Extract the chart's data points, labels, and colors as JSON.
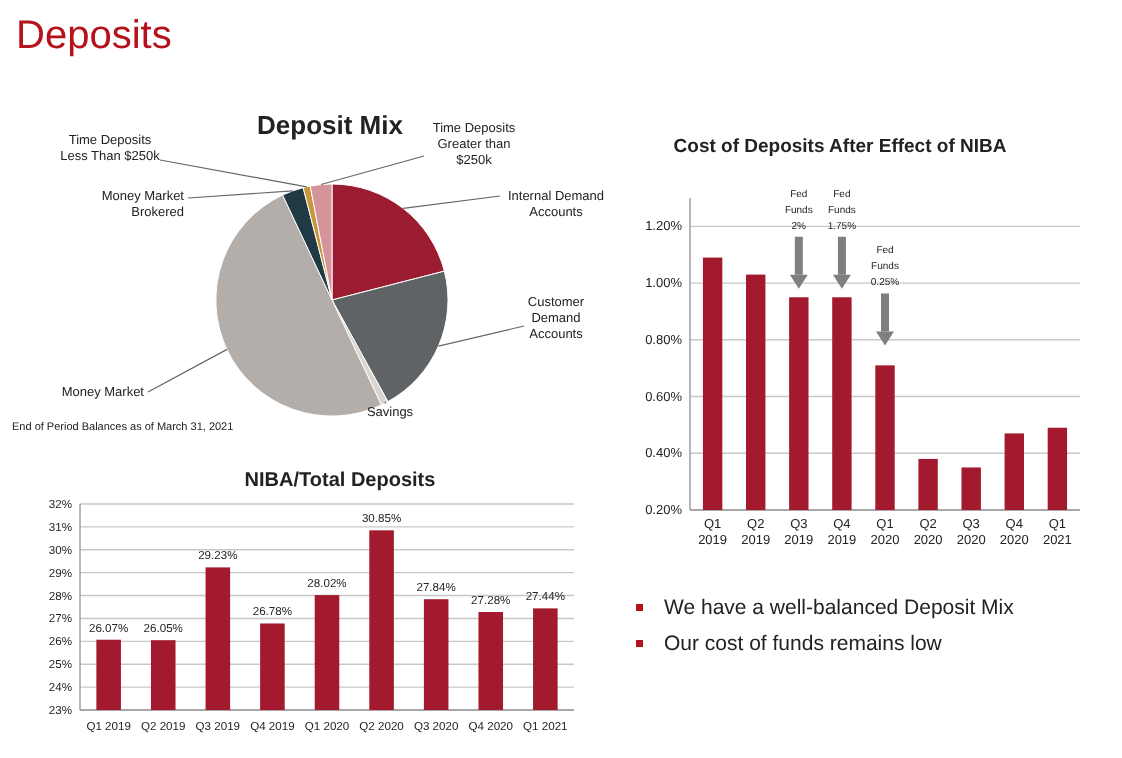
{
  "chart_data": [
    {
      "type": "other",
      "title": "Deposits",
      "annotations": [
        "We have a well-balanced Deposit Mix",
        "Our cost of funds remains low"
      ]
    },
    {
      "type": "pie",
      "title": "Deposit Mix",
      "categories": [
        "Internal Demand Accounts",
        "Customer Demand Accounts",
        "Savings",
        "Money Market",
        "Money Market Brokered",
        "Time Deposits Less Than $250k",
        "Time Deposits Greater than $250k"
      ],
      "values": [
        21,
        21,
        1,
        50,
        3,
        1,
        3
      ],
      "colors": [
        "#9b1b30",
        "#5f6366",
        "#d9d6d0",
        "#b3aea9",
        "#1f3a44",
        "#c8963e",
        "#d4949a"
      ],
      "annotations": [
        "End of Period Balances as of March 31, 2021"
      ]
    },
    {
      "type": "bar",
      "title": "Cost of Deposits After Effect of NIBA",
      "categories": [
        "Q1 2019",
        "Q2 2019",
        "Q3 2019",
        "Q4 2019",
        "Q1 2020",
        "Q2 2020",
        "Q3 2020",
        "Q4 2020",
        "Q1 2021"
      ],
      "series": [
        {
          "color": "#a3192e",
          "values": [
            1.09,
            1.03,
            0.95,
            0.95,
            0.71,
            0.38,
            0.35,
            0.47,
            0.49
          ]
        }
      ],
      "ylim": [
        0.2,
        1.3
      ],
      "yticks": [
        {
          "value": 0.2,
          "label": "0.20%"
        },
        {
          "value": 0.4,
          "label": "0.40%"
        },
        {
          "value": 0.6,
          "label": "0.60%"
        },
        {
          "value": 0.8,
          "label": "0.80%"
        },
        {
          "value": 1.0,
          "label": "1.00%"
        },
        {
          "value": 1.2,
          "label": "1.20%"
        }
      ],
      "grid": "y",
      "annotations": [
        "Fed Funds 2%",
        "Fed Funds 1.75%",
        "Fed Funds 0.25%"
      ]
    },
    {
      "type": "bar",
      "title": "NIBA/Total Deposits",
      "categories": [
        "Q1 2019",
        "Q2 2019",
        "Q3 2019",
        "Q4 2019",
        "Q1 2020",
        "Q2 2020",
        "Q3 2020",
        "Q4 2020",
        "Q1 2021"
      ],
      "series": [
        {
          "color": "#a3192e",
          "values": [
            26.07,
            26.05,
            29.23,
            26.78,
            28.02,
            30.85,
            27.84,
            27.28,
            27.44
          ],
          "value_labels": [
            "26.07%",
            "26.05%",
            "29.23%",
            "26.78%",
            "28.02%",
            "30.85%",
            "27.84%",
            "27.28%",
            "27.44%"
          ]
        }
      ],
      "ylim": [
        23,
        32
      ],
      "yticks": [
        {
          "value": 23,
          "label": "23%"
        },
        {
          "value": 24,
          "label": "24%"
        },
        {
          "value": 25,
          "label": "25%"
        },
        {
          "value": 26,
          "label": "26%"
        },
        {
          "value": 27,
          "label": "27%"
        },
        {
          "value": 28,
          "label": "28%"
        },
        {
          "value": 29,
          "label": "29%"
        },
        {
          "value": 30,
          "label": "30%"
        },
        {
          "value": 31,
          "label": "31%"
        },
        {
          "value": 32,
          "label": "32%"
        }
      ],
      "grid": "y"
    }
  ]
}
